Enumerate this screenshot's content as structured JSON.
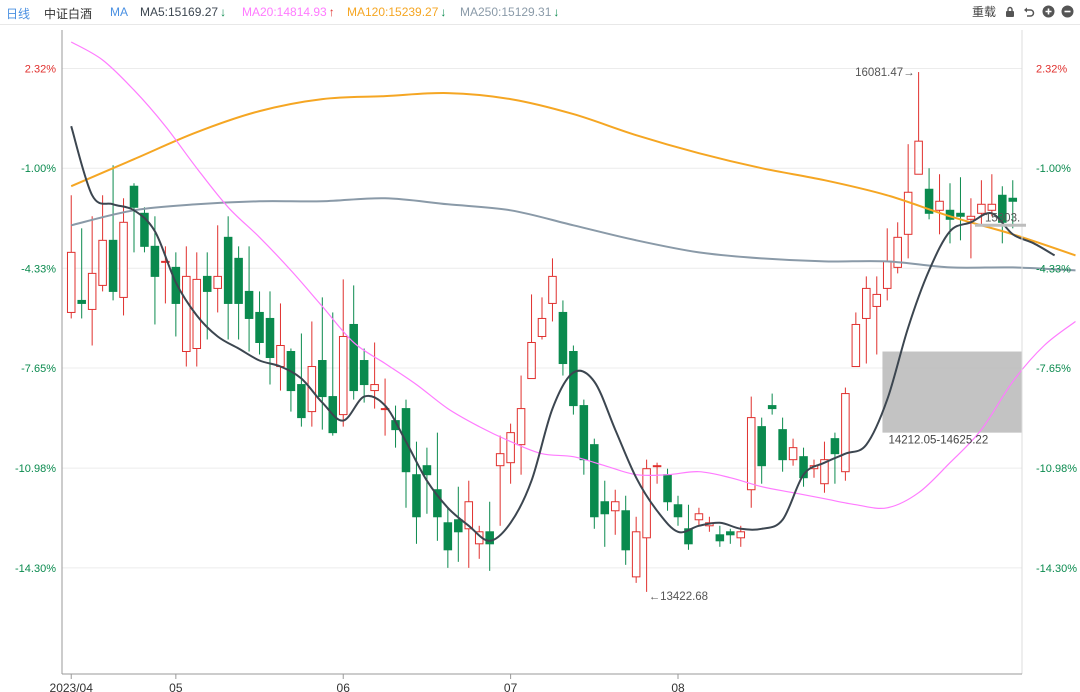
{
  "toolbar": {
    "period": "日线",
    "name": "中证白酒",
    "indicator": "MA",
    "ma5": {
      "label": "MA5:15169.27",
      "arrow": "↓",
      "color": "#3c4650",
      "arrow_color": "#0a8a4e"
    },
    "ma20": {
      "label": "MA20:14814.93",
      "arrow": "↑",
      "color": "#ff7bff",
      "arrow_color": "#e0302e"
    },
    "ma120": {
      "label": "MA120:15239.27",
      "arrow": "↓",
      "color": "#f5a623",
      "arrow_color": "#0a8a4e"
    },
    "ma250": {
      "label": "MA250:15129.31",
      "arrow": "↓",
      "color": "#8a9aa8",
      "arrow_color": "#0a8a4e"
    },
    "right_label": "重载",
    "icons": [
      "lock-icon",
      "undo-icon",
      "zoom-in-icon",
      "zoom-out-icon"
    ]
  },
  "chart_data": {
    "type": "candlestick",
    "y_unit": "percent change",
    "ylim": [
      -17.5,
      3.6
    ],
    "y_ticks": [
      "2.32%",
      "-1.00%",
      "-4.33%",
      "-7.65%",
      "-10.98%",
      "-14.30%"
    ],
    "y_tick_values": [
      2.32,
      -1.0,
      -4.33,
      -7.65,
      -10.98,
      -14.3
    ],
    "x_labels": [
      "2023/04",
      "05",
      "06",
      "07",
      "08"
    ],
    "x_label_index": [
      0,
      10,
      26,
      42,
      58
    ],
    "colors": {
      "up": "#e0302e",
      "down": "#0a8a4e",
      "grid": "#ececec"
    },
    "candles": [
      [
        -5.8,
        -3.8,
        -1.9,
        -6.0
      ],
      [
        -5.4,
        -5.5,
        -3.0,
        -6.0
      ],
      [
        -5.7,
        -4.5,
        -2.6,
        -6.9
      ],
      [
        -4.9,
        -3.4,
        -1.9,
        -5.1
      ],
      [
        -3.4,
        -5.1,
        -0.9,
        -5.4
      ],
      [
        -5.3,
        -2.8,
        -2.0,
        -5.9
      ],
      [
        -1.6,
        -2.3,
        -1.5,
        -3.8
      ],
      [
        -2.5,
        -3.6,
        -2.3,
        -3.8
      ],
      [
        -3.6,
        -4.6,
        -2.6,
        -6.2
      ],
      [
        -4.1,
        -4.1,
        -3.6,
        -5.5
      ],
      [
        -4.3,
        -5.5,
        -3.8,
        -6.6
      ],
      [
        -7.1,
        -4.6,
        -3.6,
        -7.6
      ],
      [
        -7.0,
        -4.7,
        -3.8,
        -7.6
      ],
      [
        -4.6,
        -5.1,
        -3.8,
        -6.7
      ],
      [
        -5.0,
        -4.6,
        -2.9,
        -5.8
      ],
      [
        -3.3,
        -5.5,
        -2.6,
        -6.7
      ],
      [
        -4.0,
        -5.5,
        -3.6,
        -6.7
      ],
      [
        -5.1,
        -6.0,
        -3.6,
        -7.1
      ],
      [
        -5.8,
        -6.8,
        -5.1,
        -7.2
      ],
      [
        -6.0,
        -7.3,
        -5.1,
        -8.2
      ],
      [
        -7.6,
        -6.9,
        -5.5,
        -8.4
      ],
      [
        -7.1,
        -8.4,
        -7.0,
        -9.1
      ],
      [
        -8.2,
        -9.3,
        -6.5,
        -9.6
      ],
      [
        -9.1,
        -7.6,
        -6.1,
        -9.6
      ],
      [
        -7.4,
        -8.6,
        -5.3,
        -9.7
      ],
      [
        -8.6,
        -9.8,
        -5.8,
        -9.9
      ],
      [
        -9.2,
        -6.6,
        -4.7,
        -9.6
      ],
      [
        -6.2,
        -8.4,
        -4.9,
        -8.7
      ],
      [
        -7.4,
        -8.2,
        -7.0,
        -8.8
      ],
      [
        -8.4,
        -8.2,
        -6.8,
        -9.0
      ],
      [
        -9.0,
        -9.0,
        -8.0,
        -9.9
      ],
      [
        -9.4,
        -9.7,
        -8.9,
        -10.3
      ],
      [
        -9.0,
        -11.1,
        -8.7,
        -12.3
      ],
      [
        -11.2,
        -12.6,
        -10.1,
        -13.5
      ],
      [
        -10.9,
        -11.2,
        -10.3,
        -12.5
      ],
      [
        -11.7,
        -12.6,
        -9.8,
        -13.4
      ],
      [
        -12.8,
        -13.7,
        -12.3,
        -14.3
      ],
      [
        -12.7,
        -13.1,
        -11.6,
        -14.1
      ],
      [
        -13.0,
        -12.1,
        -11.4,
        -14.3
      ],
      [
        -13.5,
        -13.1,
        -12.9,
        -14.0
      ],
      [
        -13.1,
        -13.5,
        -12.1,
        -14.4
      ],
      [
        -10.9,
        -10.5,
        -9.9,
        -12.9
      ],
      [
        -10.8,
        -9.8,
        -9.5,
        -11.5
      ],
      [
        -10.2,
        -9.0,
        -7.9,
        -11.2
      ],
      [
        -8.0,
        -6.8,
        -5.2,
        -8.0
      ],
      [
        -6.6,
        -6.0,
        -5.3,
        -6.7
      ],
      [
        -5.5,
        -4.6,
        -4.0,
        -6.1
      ],
      [
        -5.8,
        -7.5,
        -5.4,
        -7.9
      ],
      [
        -7.1,
        -8.9,
        -6.9,
        -9.2
      ],
      [
        -8.9,
        -10.7,
        -8.7,
        -11.2
      ],
      [
        -10.2,
        -12.6,
        -10.0,
        -13.0
      ],
      [
        -12.1,
        -12.5,
        -11.4,
        -13.6
      ],
      [
        -12.4,
        -12.1,
        -11.7,
        -13.2
      ],
      [
        -12.4,
        -13.7,
        -11.9,
        -14.2
      ],
      [
        -14.6,
        -13.1,
        -12.6,
        -14.8
      ],
      [
        -13.3,
        -11.0,
        -10.7,
        -15.1
      ],
      [
        -10.9,
        -10.9,
        -10.8,
        -11.5
      ],
      [
        -11.2,
        -12.1,
        -11.0,
        -12.4
      ],
      [
        -12.2,
        -12.6,
        -11.9,
        -12.9
      ],
      [
        -13.0,
        -13.5,
        -12.2,
        -13.7
      ],
      [
        -12.7,
        -12.5,
        -12.3,
        -12.9
      ],
      [
        -12.9,
        -12.8,
        -12.6,
        -13.1
      ],
      [
        -13.2,
        -13.4,
        -12.9,
        -13.6
      ],
      [
        -13.1,
        -13.2,
        -13.0,
        -13.5
      ],
      [
        -13.3,
        -13.1,
        -12.9,
        -13.6
      ],
      [
        -11.7,
        -9.3,
        -8.6,
        -12.3
      ],
      [
        -9.6,
        -10.9,
        -9.3,
        -11.5
      ],
      [
        -8.9,
        -9.0,
        -8.5,
        -9.2
      ],
      [
        -9.7,
        -10.7,
        -9.3,
        -11.1
      ],
      [
        -10.7,
        -10.3,
        -10.0,
        -10.9
      ],
      [
        -10.6,
        -11.3,
        -10.3,
        -11.6
      ],
      [
        -11.0,
        -10.9,
        -10.7,
        -11.3
      ],
      [
        -11.5,
        -10.7,
        -10.1,
        -11.8
      ],
      [
        -10.0,
        -10.5,
        -9.8,
        -11.5
      ],
      [
        -11.1,
        -8.5,
        -8.3,
        -11.4
      ],
      [
        -7.6,
        -6.2,
        -5.8,
        -7.6
      ],
      [
        -6.0,
        -5.0,
        -4.6,
        -7.5
      ],
      [
        -5.6,
        -5.2,
        -4.6,
        -7.2
      ],
      [
        -5.0,
        -4.1,
        -3.0,
        -5.4
      ],
      [
        -4.3,
        -3.3,
        -2.8,
        -4.5
      ],
      [
        -3.2,
        -1.8,
        -0.2,
        -4.0
      ],
      [
        -1.2,
        -0.1,
        2.2,
        -1.2
      ],
      [
        -1.7,
        -2.5,
        -1.0,
        -2.7
      ],
      [
        -2.4,
        -2.1,
        -1.2,
        -3.2
      ],
      [
        -2.4,
        -2.7,
        -1.5,
        -3.5
      ],
      [
        -2.5,
        -2.6,
        -1.3,
        -3.4
      ],
      [
        -2.7,
        -2.6,
        -2.0,
        -4.0
      ],
      [
        -2.5,
        -2.2,
        -1.4,
        -2.9
      ],
      [
        -2.4,
        -2.2,
        -1.2,
        -2.6
      ],
      [
        -1.9,
        -2.8,
        -1.6,
        -3.5
      ],
      [
        -2.0,
        -2.1,
        -1.4,
        -3.0
      ]
    ],
    "ma_lines": [
      {
        "name": "MA5",
        "color": "#3c4650",
        "points": [
          [
            0,
            0.4
          ],
          [
            2,
            -1.9
          ],
          [
            4,
            -2.2
          ],
          [
            6,
            -2.4
          ],
          [
            8,
            -3.1
          ],
          [
            10,
            -4.8
          ],
          [
            12,
            -5.9
          ],
          [
            14,
            -6.6
          ],
          [
            16,
            -7.0
          ],
          [
            18,
            -7.4
          ],
          [
            20,
            -7.6
          ],
          [
            22,
            -8.0
          ],
          [
            24,
            -8.8
          ],
          [
            26,
            -9.4
          ],
          [
            28,
            -8.6
          ],
          [
            30,
            -8.9
          ],
          [
            32,
            -10.1
          ],
          [
            34,
            -11.4
          ],
          [
            36,
            -12.3
          ],
          [
            38,
            -12.9
          ],
          [
            40,
            -13.4
          ],
          [
            42,
            -12.8
          ],
          [
            44,
            -11.4
          ],
          [
            46,
            -9.0
          ],
          [
            48,
            -7.8
          ],
          [
            50,
            -8.1
          ],
          [
            52,
            -9.7
          ],
          [
            54,
            -11.3
          ],
          [
            56,
            -12.4
          ],
          [
            58,
            -13.1
          ],
          [
            60,
            -12.9
          ],
          [
            62,
            -12.8
          ],
          [
            64,
            -13.0
          ],
          [
            66,
            -13.0
          ],
          [
            68,
            -12.7
          ],
          [
            70,
            -11.2
          ],
          [
            72,
            -10.8
          ],
          [
            74,
            -10.5
          ],
          [
            76,
            -10.2
          ],
          [
            78,
            -8.7
          ],
          [
            80,
            -6.3
          ],
          [
            82,
            -4.4
          ],
          [
            84,
            -3.1
          ],
          [
            86,
            -2.8
          ],
          [
            88,
            -2.5
          ],
          [
            90,
            -3.2
          ],
          [
            92,
            -3.5
          ],
          [
            94,
            -3.9
          ]
        ]
      },
      {
        "name": "MA20",
        "color": "#ff7bff",
        "points": [
          [
            0,
            3.2
          ],
          [
            3,
            2.6
          ],
          [
            6,
            1.6
          ],
          [
            9,
            0.4
          ],
          [
            12,
            -1.0
          ],
          [
            15,
            -2.3
          ],
          [
            18,
            -3.3
          ],
          [
            21,
            -4.4
          ],
          [
            24,
            -5.6
          ],
          [
            27,
            -6.8
          ],
          [
            30,
            -7.5
          ],
          [
            33,
            -8.2
          ],
          [
            36,
            -9.0
          ],
          [
            39,
            -9.6
          ],
          [
            42,
            -10.1
          ],
          [
            45,
            -10.5
          ],
          [
            48,
            -10.6
          ],
          [
            51,
            -10.9
          ],
          [
            54,
            -11.2
          ],
          [
            57,
            -11.2
          ],
          [
            60,
            -11.1
          ],
          [
            63,
            -11.3
          ],
          [
            66,
            -11.6
          ],
          [
            69,
            -11.8
          ],
          [
            72,
            -12.0
          ],
          [
            75,
            -12.2
          ],
          [
            78,
            -12.3
          ],
          [
            81,
            -11.8
          ],
          [
            84,
            -10.8
          ],
          [
            87,
            -9.7
          ],
          [
            90,
            -8.1
          ],
          [
            93,
            -6.9
          ],
          [
            96,
            -6.1
          ]
        ]
      },
      {
        "name": "MA120",
        "color": "#f5a623",
        "points": [
          [
            0,
            -1.6
          ],
          [
            6,
            -0.7
          ],
          [
            12,
            0.2
          ],
          [
            18,
            0.9
          ],
          [
            24,
            1.3
          ],
          [
            30,
            1.4
          ],
          [
            36,
            1.5
          ],
          [
            42,
            1.3
          ],
          [
            48,
            0.8
          ],
          [
            54,
            0.1
          ],
          [
            60,
            -0.5
          ],
          [
            66,
            -1.0
          ],
          [
            72,
            -1.4
          ],
          [
            78,
            -1.9
          ],
          [
            84,
            -2.6
          ],
          [
            90,
            -3.2
          ],
          [
            96,
            -3.9
          ]
        ]
      },
      {
        "name": "MA250",
        "color": "#8a9aa8",
        "points": [
          [
            0,
            -2.9
          ],
          [
            6,
            -2.4
          ],
          [
            12,
            -2.2
          ],
          [
            18,
            -2.1
          ],
          [
            24,
            -2.1
          ],
          [
            30,
            -2.0
          ],
          [
            36,
            -2.2
          ],
          [
            42,
            -2.4
          ],
          [
            48,
            -2.9
          ],
          [
            54,
            -3.4
          ],
          [
            60,
            -3.8
          ],
          [
            66,
            -4.0
          ],
          [
            72,
            -4.1
          ],
          [
            78,
            -4.1
          ],
          [
            84,
            -4.3
          ],
          [
            90,
            -4.3
          ],
          [
            96,
            -4.4
          ]
        ]
      }
    ],
    "annotations": {
      "high_label": "16081.47→",
      "high_index": 81,
      "low_label": "←13422.68",
      "low_index": 55,
      "range_label": "14212.05-14625.22",
      "range_from_index": 78,
      "range_top": -7.1,
      "range_bottom": -9.8,
      "level_label": "15303.",
      "level_value": -2.8
    }
  }
}
